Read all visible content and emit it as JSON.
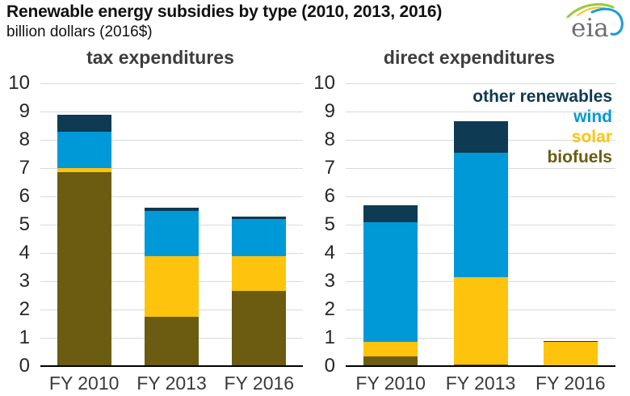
{
  "header": {
    "title": "Renewable energy subsidies by type (2010, 2013, 2016)",
    "subtitle": "billion dollars (2016$)",
    "logo_text": "eia"
  },
  "chart_data": {
    "type": "bar",
    "stacked": true,
    "title": "Renewable energy subsidies by type (2010, 2013, 2016)",
    "ylabel": "billion dollars (2016$)",
    "categories": [
      "FY 2010",
      "FY 2013",
      "FY 2016"
    ],
    "ylim": [
      0,
      10
    ],
    "ytick_interval": 1,
    "grid": true,
    "stack_order": [
      "biofuels",
      "solar",
      "wind",
      "other renewables"
    ],
    "colors": {
      "other renewables": "#0e3a53",
      "wind": "#0099d8",
      "solar": "#fec40d",
      "biofuels": "#6b5c11"
    },
    "legend": {
      "position": "top-right",
      "entries": [
        "other renewables",
        "wind",
        "solar",
        "biofuels"
      ]
    },
    "panels": [
      {
        "title": "tax expenditures",
        "series": [
          {
            "name": "biofuels",
            "values": [
              6.85,
              1.75,
              2.65
            ]
          },
          {
            "name": "solar",
            "values": [
              0.15,
              2.15,
              1.25
            ]
          },
          {
            "name": "wind",
            "values": [
              1.3,
              1.6,
              1.3
            ]
          },
          {
            "name": "other renewables",
            "values": [
              0.6,
              0.1,
              0.1
            ]
          }
        ],
        "totals": [
          8.9,
          5.6,
          5.3
        ]
      },
      {
        "title": "direct expenditures",
        "series": [
          {
            "name": "biofuels",
            "values": [
              0.35,
              0.05,
              0.0
            ]
          },
          {
            "name": "solar",
            "values": [
              0.5,
              3.1,
              0.85
            ]
          },
          {
            "name": "wind",
            "values": [
              4.25,
              4.4,
              0.0
            ]
          },
          {
            "name": "other renewables",
            "values": [
              0.6,
              1.1,
              0.05
            ]
          }
        ],
        "totals": [
          5.7,
          8.65,
          0.9
        ]
      }
    ]
  }
}
